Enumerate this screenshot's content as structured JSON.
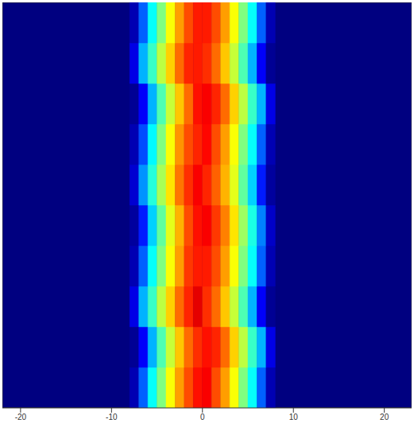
{
  "chart_data": {
    "type": "heatmap",
    "xbins": [
      -8,
      -7,
      -6,
      -5,
      -4,
      -3,
      -2,
      -1,
      0,
      1,
      2,
      3,
      4,
      5,
      6,
      7,
      8
    ],
    "ybins": [
      0,
      1,
      2,
      3,
      4,
      5,
      6,
      7,
      8,
      9,
      10
    ],
    "cells": [
      [
        0.05,
        0.22,
        0.38,
        0.5,
        0.62,
        0.72,
        0.8,
        0.86,
        0.88,
        0.8,
        0.72,
        0.62,
        0.5,
        0.38,
        0.22,
        0.05
      ],
      [
        0.02,
        0.12,
        0.3,
        0.45,
        0.57,
        0.68,
        0.77,
        0.83,
        0.86,
        0.84,
        0.77,
        0.67,
        0.56,
        0.43,
        0.3,
        0.1
      ],
      [
        0.1,
        0.3,
        0.43,
        0.56,
        0.67,
        0.77,
        0.84,
        0.9,
        0.83,
        0.77,
        0.68,
        0.57,
        0.45,
        0.3,
        0.12,
        0.02
      ],
      [
        0.05,
        0.22,
        0.38,
        0.5,
        0.62,
        0.72,
        0.82,
        0.85,
        0.85,
        0.8,
        0.72,
        0.62,
        0.5,
        0.38,
        0.22,
        0.05
      ],
      [
        0.03,
        0.15,
        0.33,
        0.47,
        0.6,
        0.7,
        0.8,
        0.86,
        0.88,
        0.82,
        0.75,
        0.65,
        0.53,
        0.4,
        0.25,
        0.07
      ],
      [
        0.08,
        0.27,
        0.41,
        0.54,
        0.65,
        0.76,
        0.83,
        0.88,
        0.84,
        0.78,
        0.7,
        0.6,
        0.47,
        0.33,
        0.15,
        0.03
      ],
      [
        0.05,
        0.2,
        0.37,
        0.5,
        0.62,
        0.73,
        0.8,
        0.84,
        0.87,
        0.8,
        0.72,
        0.62,
        0.5,
        0.38,
        0.22,
        0.05
      ],
      [
        0.02,
        0.12,
        0.3,
        0.45,
        0.57,
        0.68,
        0.77,
        0.86,
        0.88,
        0.84,
        0.77,
        0.67,
        0.56,
        0.43,
        0.3,
        0.1
      ],
      [
        0.1,
        0.3,
        0.43,
        0.56,
        0.67,
        0.77,
        0.84,
        0.85,
        0.83,
        0.77,
        0.68,
        0.57,
        0.45,
        0.3,
        0.12,
        0.02
      ],
      [
        0.05,
        0.22,
        0.38,
        0.5,
        0.62,
        0.72,
        0.8,
        0.85,
        0.85,
        0.8,
        0.72,
        0.62,
        0.5,
        0.38,
        0.22,
        0.05
      ]
    ],
    "zlim": [
      0,
      1
    ],
    "xlim": [
      -22,
      23
    ],
    "xticks": [
      -20,
      -10,
      0,
      10,
      20
    ],
    "ylim": [
      0,
      10
    ],
    "tick_labels": "x"
  }
}
